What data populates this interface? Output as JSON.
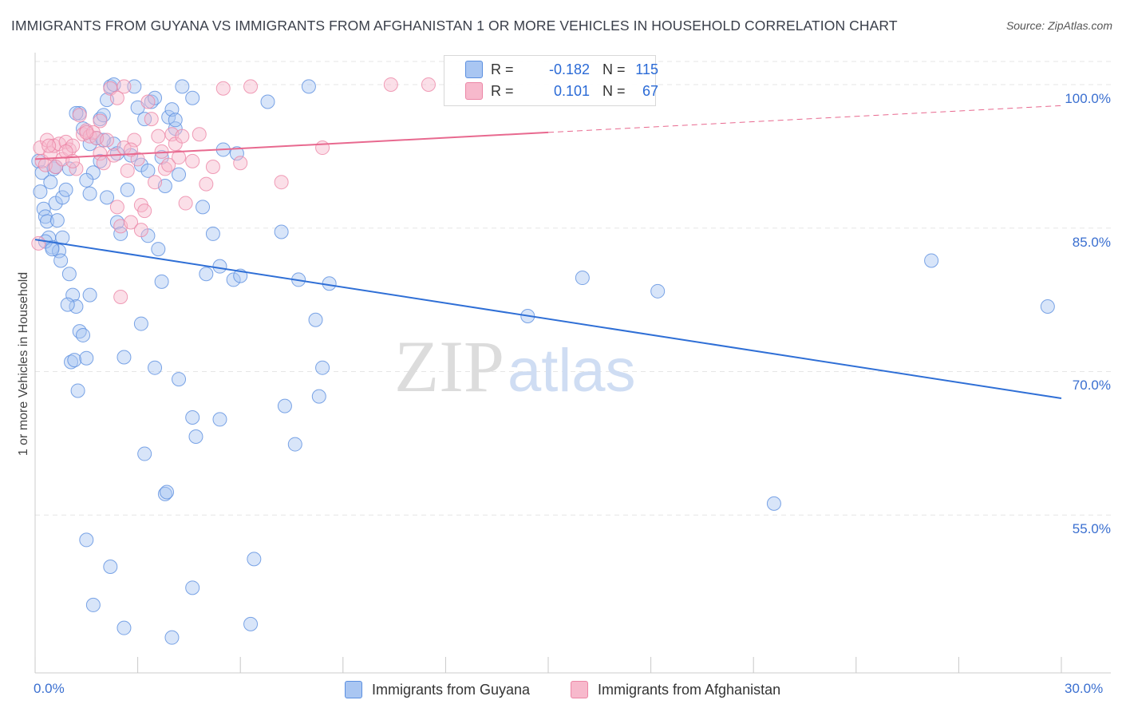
{
  "title": "IMMIGRANTS FROM GUYANA VS IMMIGRANTS FROM AFGHANISTAN 1 OR MORE VEHICLES IN HOUSEHOLD CORRELATION CHART",
  "source": "Source: ZipAtlas.com",
  "watermark": {
    "zip": "ZIP",
    "atlas": "atlas"
  },
  "legend": {
    "r_label": "R =",
    "n_label": "N =",
    "series": [
      {
        "name": "Immigrants from Guyana",
        "r": "-0.182",
        "n": "115"
      },
      {
        "name": "Immigrants from Afghanistan",
        "r": "0.101",
        "n": "67"
      }
    ]
  },
  "colors": {
    "guyana_fill": "#a9c6f2",
    "guyana_stroke": "#5b8fe0",
    "guyana_line": "#2f6fd6",
    "afghan_fill": "#f7b9cc",
    "afghan_stroke": "#ec86a6",
    "afghan_line": "#e8698f",
    "tick_text": "#3a6fd0",
    "grid": "#e6e6e6"
  },
  "chart_data": {
    "type": "scatter",
    "title": "IMMIGRANTS FROM GUYANA VS IMMIGRANTS FROM AFGHANISTAN 1 OR MORE VEHICLES IN HOUSEHOLD CORRELATION CHART",
    "xlabel": "",
    "ylabel": "1 or more Vehicles in Household",
    "xlim": [
      0,
      30
    ],
    "ylim": [
      38.5,
      103
    ],
    "x_ticks": [
      {
        "value": 0,
        "label": "0.0%"
      },
      {
        "value": 30,
        "label": "30.0%"
      }
    ],
    "y_ticks": [
      {
        "value": 100,
        "label": "100.0%"
      },
      {
        "value": 85,
        "label": "85.0%"
      },
      {
        "value": 70,
        "label": "70.0%"
      },
      {
        "value": 55,
        "label": "55.0%"
      }
    ],
    "series": [
      {
        "name": "Immigrants from Guyana",
        "trend": {
          "x": [
            0,
            30
          ],
          "y": [
            83.8,
            67.2
          ],
          "dashed_from": null
        },
        "points": [
          [
            0.1,
            92
          ],
          [
            0.15,
            88.8
          ],
          [
            0.2,
            90.8
          ],
          [
            0.25,
            87
          ],
          [
            0.3,
            86.2
          ],
          [
            0.35,
            85.7
          ],
          [
            0.4,
            84
          ],
          [
            0.45,
            89.8
          ],
          [
            0.5,
            83
          ],
          [
            0.55,
            91.2
          ],
          [
            0.6,
            87.6
          ],
          [
            0.65,
            85.8
          ],
          [
            0.7,
            82.6
          ],
          [
            0.75,
            81.6
          ],
          [
            0.8,
            88.2
          ],
          [
            0.9,
            89
          ],
          [
            1.0,
            80.2
          ],
          [
            1.1,
            78
          ],
          [
            1.2,
            76.8
          ],
          [
            1.3,
            74.2
          ],
          [
            0.95,
            77
          ],
          [
            1.05,
            71
          ],
          [
            1.15,
            71.2
          ],
          [
            1.25,
            68
          ],
          [
            1.4,
            73.8
          ],
          [
            1.5,
            71.4
          ],
          [
            1.6,
            78
          ],
          [
            1.7,
            90.8
          ],
          [
            1.8,
            94.4
          ],
          [
            1.9,
            96.4
          ],
          [
            2.0,
            96.8
          ],
          [
            2.1,
            98.4
          ],
          [
            2.2,
            99.8
          ],
          [
            1.3,
            97
          ],
          [
            1.6,
            93.8
          ],
          [
            2.4,
            85.6
          ],
          [
            2.5,
            84.4
          ],
          [
            2.6,
            71.5
          ],
          [
            2.7,
            89
          ],
          [
            2.3,
            93.8
          ],
          [
            2.8,
            92.6
          ],
          [
            2.9,
            99.8
          ],
          [
            3.0,
            97.6
          ],
          [
            3.1,
            91.6
          ],
          [
            3.2,
            96.4
          ],
          [
            3.3,
            84.2
          ],
          [
            3.4,
            98.2
          ],
          [
            3.5,
            98.6
          ],
          [
            3.6,
            82.8
          ],
          [
            3.7,
            92.4
          ],
          [
            3.8,
            89.4
          ],
          [
            3.9,
            96.6
          ],
          [
            4.0,
            97.4
          ],
          [
            4.1,
            95.4
          ],
          [
            4.2,
            90.6
          ],
          [
            4.3,
            99.8
          ],
          [
            4.6,
            98.6
          ],
          [
            4.9,
            87.2
          ],
          [
            5.0,
            80.2
          ],
          [
            5.2,
            84.4
          ],
          [
            5.5,
            93.2
          ],
          [
            5.8,
            79.6
          ],
          [
            6.0,
            80
          ],
          [
            5.9,
            92.8
          ],
          [
            6.8,
            98.2
          ],
          [
            7.2,
            84.6
          ],
          [
            7.7,
            79.6
          ],
          [
            8.0,
            99.8
          ],
          [
            8.2,
            75.4
          ],
          [
            8.6,
            79.2
          ],
          [
            8.4,
            70.4
          ],
          [
            7.3,
            66.4
          ],
          [
            8.3,
            67.4
          ],
          [
            7.6,
            62.4
          ],
          [
            4.6,
            65.2
          ],
          [
            5.4,
            65.0
          ],
          [
            4.7,
            63.2
          ],
          [
            4.2,
            69.2
          ],
          [
            3.5,
            70.4
          ],
          [
            3.1,
            75
          ],
          [
            3.2,
            61.4
          ],
          [
            3.8,
            57.2
          ],
          [
            3.85,
            57.4
          ],
          [
            1.5,
            52.4
          ],
          [
            2.2,
            49.6
          ],
          [
            4.6,
            47.4
          ],
          [
            1.7,
            45.6
          ],
          [
            2.6,
            43.2
          ],
          [
            4.0,
            42.2
          ],
          [
            6.3,
            43.6
          ],
          [
            6.4,
            50.4
          ],
          [
            5.4,
            81.0
          ],
          [
            3.7,
            79.4
          ],
          [
            0.6,
            91.4
          ],
          [
            1.2,
            97
          ],
          [
            1.0,
            91.2
          ],
          [
            1.5,
            90.0
          ],
          [
            1.6,
            88.6
          ],
          [
            2.0,
            94.2
          ],
          [
            2.4,
            92.8
          ],
          [
            14.4,
            75.8
          ],
          [
            16.0,
            79.8
          ],
          [
            18.2,
            78.4
          ],
          [
            21.6,
            56.2
          ],
          [
            26.2,
            81.6
          ],
          [
            29.6,
            76.8
          ],
          [
            0.3,
            83.6
          ],
          [
            0.5,
            82.8
          ],
          [
            0.8,
            84.0
          ],
          [
            1.4,
            95.4
          ],
          [
            1.9,
            92.0
          ],
          [
            2.1,
            88.2
          ],
          [
            2.3,
            100
          ],
          [
            4.1,
            96.3
          ],
          [
            3.3,
            91.0
          ]
        ]
      },
      {
        "name": "Immigrants from Afghanistan",
        "trend": {
          "x": [
            0,
            30
          ],
          "y": [
            92.2,
            97.8
          ],
          "dashed_from": 15
        },
        "points": [
          [
            0.1,
            83.4
          ],
          [
            0.15,
            93.4
          ],
          [
            0.2,
            92.0
          ],
          [
            0.3,
            91.6
          ],
          [
            0.35,
            94.2
          ],
          [
            0.45,
            92.8
          ],
          [
            0.55,
            93.6
          ],
          [
            0.6,
            91.4
          ],
          [
            0.7,
            93.8
          ],
          [
            0.8,
            92.2
          ],
          [
            0.9,
            94.0
          ],
          [
            1.0,
            93.2
          ],
          [
            1.1,
            93.6
          ],
          [
            1.2,
            91.2
          ],
          [
            1.3,
            96.8
          ],
          [
            1.4,
            94.8
          ],
          [
            1.5,
            95.2
          ],
          [
            1.6,
            94.6
          ],
          [
            1.7,
            95.0
          ],
          [
            1.8,
            94.4
          ],
          [
            1.9,
            92.8
          ],
          [
            2.0,
            91.8
          ],
          [
            2.1,
            94.2
          ],
          [
            2.2,
            99.6
          ],
          [
            2.3,
            92.6
          ],
          [
            2.4,
            87.2
          ],
          [
            2.5,
            85.2
          ],
          [
            2.6,
            93.4
          ],
          [
            2.7,
            91.0
          ],
          [
            2.8,
            85.6
          ],
          [
            2.9,
            94.2
          ],
          [
            3.0,
            92.2
          ],
          [
            3.1,
            87.4
          ],
          [
            3.2,
            86.8
          ],
          [
            3.3,
            98.2
          ],
          [
            3.4,
            96.4
          ],
          [
            3.5,
            89.8
          ],
          [
            3.6,
            94.6
          ],
          [
            3.7,
            93.0
          ],
          [
            3.8,
            91.2
          ],
          [
            3.9,
            91.6
          ],
          [
            4.0,
            94.8
          ],
          [
            4.1,
            93.8
          ],
          [
            4.2,
            92.4
          ],
          [
            4.3,
            94.6
          ],
          [
            4.4,
            87.6
          ],
          [
            4.6,
            92.0
          ],
          [
            5.0,
            89.6
          ],
          [
            5.2,
            91.4
          ],
          [
            5.5,
            99.6
          ],
          [
            6.3,
            99.8
          ],
          [
            7.2,
            89.8
          ],
          [
            8.4,
            93.4
          ],
          [
            10.4,
            100
          ],
          [
            11.5,
            100
          ],
          [
            1.9,
            96.2
          ],
          [
            2.5,
            77.8
          ],
          [
            3.1,
            84.8
          ],
          [
            2.8,
            93.2
          ],
          [
            0.9,
            93.0
          ],
          [
            1.1,
            92.0
          ],
          [
            2.4,
            98.6
          ],
          [
            2.6,
            99.8
          ],
          [
            1.5,
            95.0
          ],
          [
            4.8,
            94.8
          ],
          [
            6.0,
            91.8
          ],
          [
            0.4,
            93.6
          ]
        ]
      }
    ]
  },
  "axes": {
    "x_left_label": "0.0%",
    "x_right_label": "30.0%"
  }
}
